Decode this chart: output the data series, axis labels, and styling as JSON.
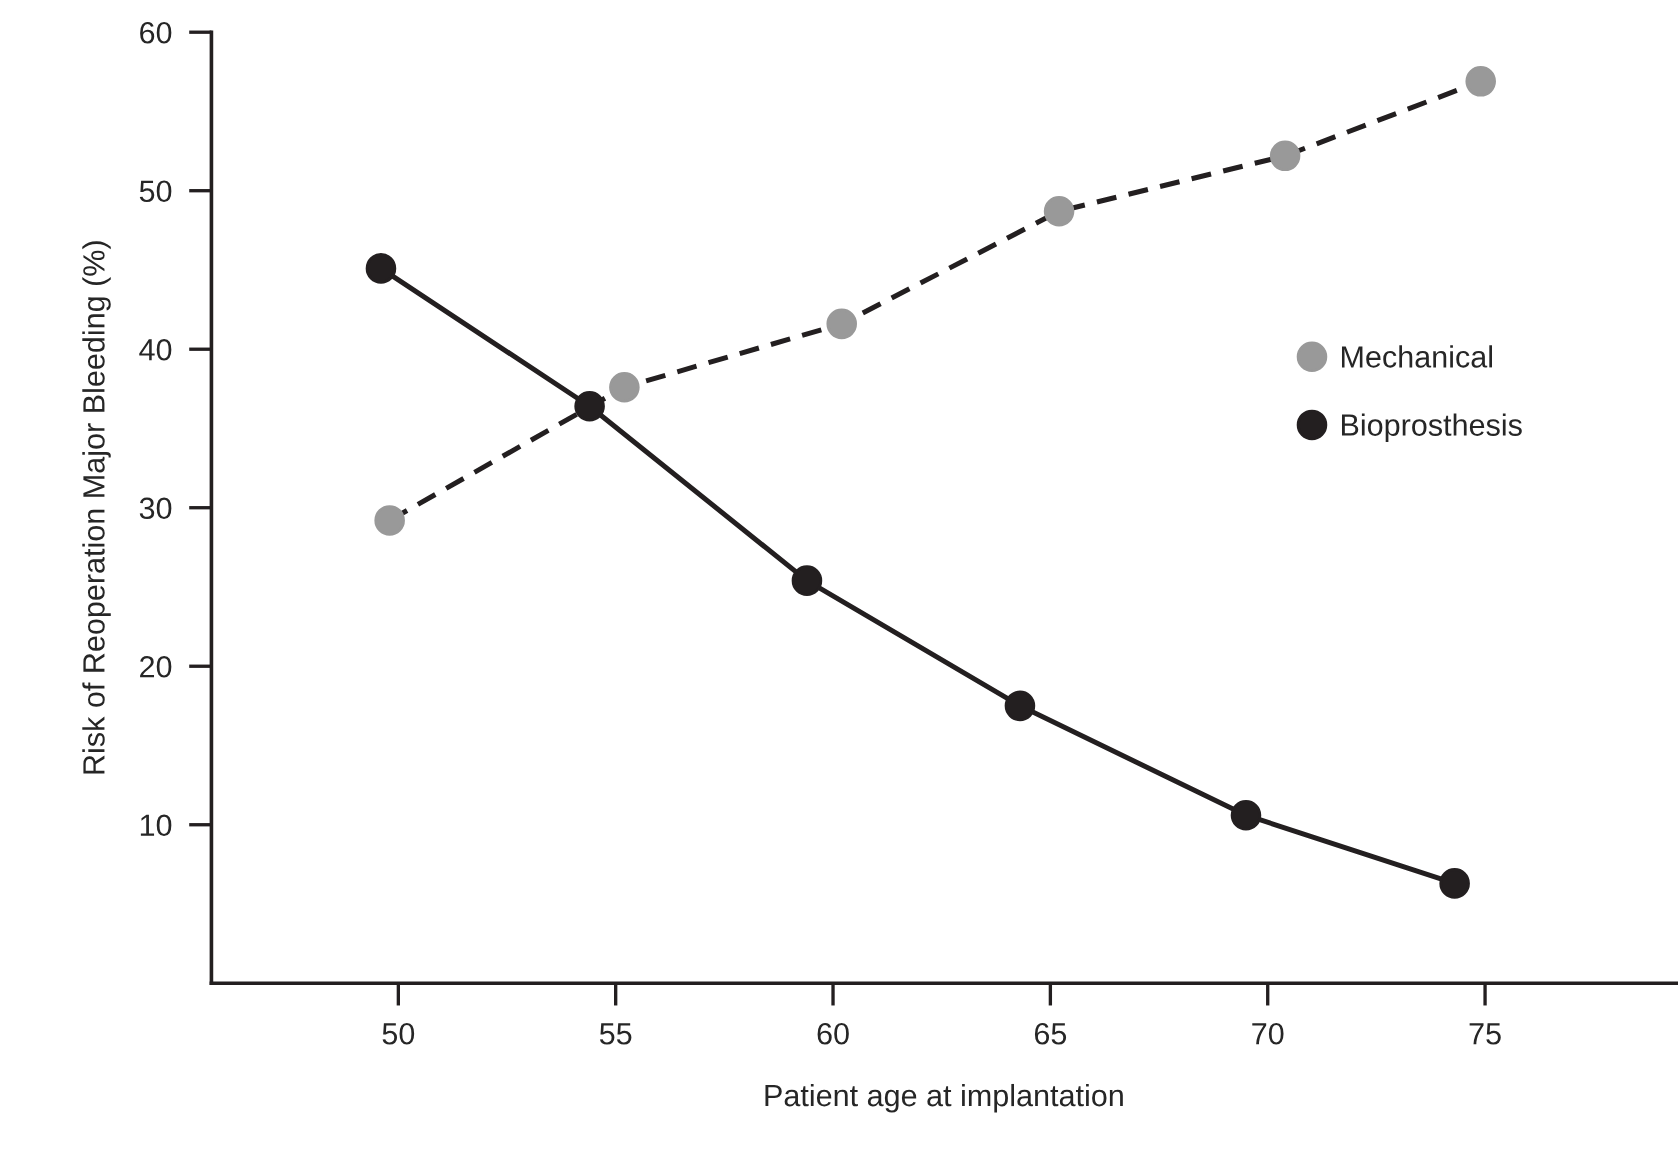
{
  "chart_data": {
    "type": "line",
    "xlabel": "Patient age at implantation",
    "ylabel": "Risk of Reoperation Major Bleeding (%)",
    "xlim": [
      45.7,
      79.4
    ],
    "xticks": [
      50,
      55,
      60,
      65,
      70,
      75
    ],
    "ylim": [
      0,
      60
    ],
    "yticks": [
      10,
      20,
      30,
      40,
      50,
      60
    ],
    "series": [
      {
        "name": "Mechanical",
        "color": "#999999",
        "line_style": "dashed",
        "x": [
          49.8,
          55.2,
          60.2,
          65.2,
          70.4,
          74.9
        ],
        "values": [
          29.2,
          37.6,
          41.6,
          48.7,
          52.2,
          56.9
        ]
      },
      {
        "name": "Bioprosthesis",
        "color": "#231f20",
        "line_style": "solid",
        "x": [
          49.6,
          54.4,
          59.4,
          64.3,
          69.5,
          74.3
        ],
        "values": [
          45.1,
          36.4,
          25.4,
          17.5,
          10.6,
          6.3
        ]
      }
    ],
    "marker": "circle",
    "grid": false,
    "legend": "right"
  }
}
